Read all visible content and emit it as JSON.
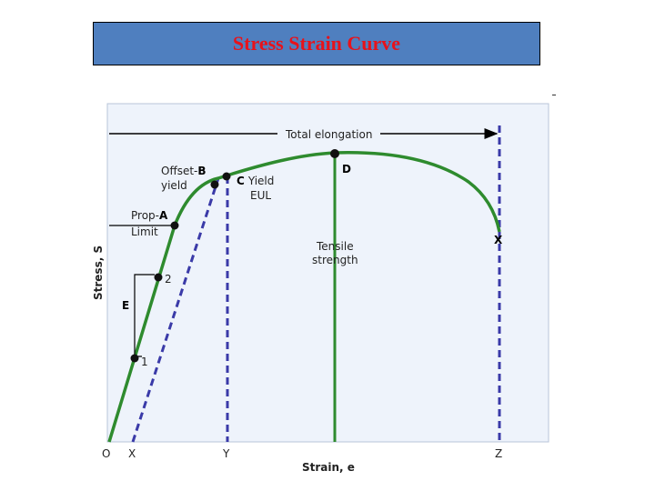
{
  "title": "Stress Strain Curve",
  "colors": {
    "title_bg": "#4f7fbf",
    "title_text": "#e8121a",
    "plot_bg": "#eef3fb",
    "curve": "#2e8b2e",
    "dashed": "#3a3aa8",
    "point": "#111111"
  },
  "labels": {
    "total_elongation": "Total elongation",
    "offset": "Offset-",
    "offset_letter": "B",
    "offset_sub": "yield",
    "prop": "Prop-",
    "prop_letter": "A",
    "prop_sub": "Limit",
    "yield_letter": "C",
    "yield_word": "Yield",
    "eul": "EUL",
    "d": "D",
    "tensile": "Tensile",
    "strength": "strength",
    "e": "E",
    "pt1": "1",
    "pt2": "2",
    "x_mark": "X",
    "y_axis": "Stress, S",
    "x_axis": "Strain, e"
  },
  "x_ticks": [
    "O",
    "X",
    "Y",
    "Z"
  ]
}
